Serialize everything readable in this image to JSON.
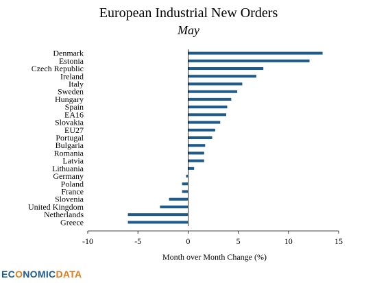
{
  "title": "European Industrial New Orders",
  "subtitle": "May",
  "logo_text": "ECONOMICDATA",
  "colors": {
    "bar": "#1f5b8a",
    "axis": "#000000",
    "logo_primary": "#1b5a8c",
    "logo_accent": "#e07b1a"
  },
  "chart_data": {
    "type": "bar",
    "orientation": "horizontal",
    "categories": [
      "Denmark",
      "Estonia",
      "Czech Republic",
      "Ireland",
      "Italy",
      "Sweden",
      "Hungary",
      "Spain",
      "EA16",
      "Slovakia",
      "EU27",
      "Portugal",
      "Bulgaria",
      "Romania",
      "Latvia",
      "Lithuania",
      "Germany",
      "Poland",
      "France",
      "Slovenia",
      "United Kingdom",
      "Netherlands",
      "Greece"
    ],
    "values": [
      13.4,
      12.1,
      7.5,
      6.8,
      5.4,
      4.9,
      4.3,
      3.9,
      3.8,
      3.2,
      2.7,
      2.4,
      1.7,
      1.6,
      1.6,
      0.6,
      -0.2,
      -0.6,
      -0.6,
      -1.9,
      -2.8,
      -6.0,
      -6.0
    ],
    "title": "European Industrial New Orders",
    "subtitle": "May",
    "xlabel": "Month over Month Change (%)",
    "ylabel": "",
    "xlim": [
      -10,
      15
    ],
    "xticks": [
      -10,
      -5,
      0,
      5,
      10,
      15
    ],
    "grid": false,
    "legend": "none"
  }
}
